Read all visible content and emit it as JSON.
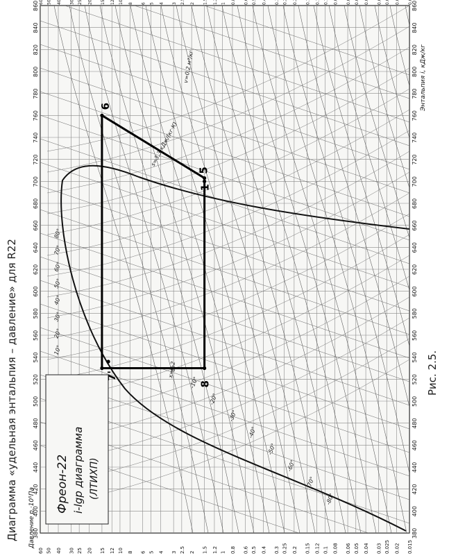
{
  "document": {
    "title": "Диаграмма «удельная энтальпия – давление» для R22",
    "caption": "Рис. 2.5."
  },
  "diagram": {
    "refrigerant": "Фреон-22",
    "diagram_name": "i-lgp диаграмма",
    "institute": "(ЛТИХП)",
    "pressure_axis_label": "Давление p,·10⁵Па",
    "enthalpy_axis_label": "Энтальпия i, кДж/кг",
    "enthalpy_ticks": [
      "380",
      "400",
      "420",
      "440",
      "460",
      "480",
      "500",
      "520",
      "540",
      "560",
      "580",
      "600",
      "620",
      "640",
      "660",
      "680",
      "700",
      "720",
      "740",
      "760",
      "780",
      "800",
      "820",
      "840",
      "860"
    ],
    "pressure_ticks": [
      "60",
      "50",
      "40",
      "30",
      "25",
      "20",
      "15",
      "12",
      "10",
      "8",
      "6",
      "5",
      "4",
      "3",
      "2.5",
      "2",
      "1.5",
      "1.2",
      "1",
      "0.8",
      "0.6",
      "0.5",
      "0.4",
      "0.3",
      "0.25",
      "0.2",
      "0.15",
      "0.12",
      "0.1",
      "0.08",
      "0.06",
      "0.05",
      "0.04",
      "0.03",
      "0.025",
      "0.02",
      "0.015"
    ],
    "temperature_labels": [
      "-80°",
      "-70°",
      "-60°",
      "-50°",
      "-40°",
      "-30°",
      "-20°",
      "-10°",
      "0°",
      "10°",
      "20°",
      "30°",
      "40°",
      "50°",
      "60°",
      "70°",
      "80°"
    ],
    "entropy_label": "s=3,3 кДж/(кг·К)",
    "volume_label": "v=0,2 м³/кг",
    "quality_label": "x=0,2",
    "cycle": {
      "points": [
        {
          "id": "6",
          "enthalpy": 760,
          "pressure": 15
        },
        {
          "id": "5",
          "enthalpy": 703,
          "pressure": 1.5
        },
        {
          "id": "1",
          "enthalpy": 700,
          "pressure": 1.5
        },
        {
          "id": "7",
          "enthalpy": 530,
          "pressure": 15
        },
        {
          "id": "7'",
          "enthalpy": 536,
          "pressure": 13
        },
        {
          "id": "8",
          "enthalpy": 530,
          "pressure": 1.5
        }
      ],
      "label_6": "6",
      "label_5": "5",
      "label_1": "1",
      "label_7": "7",
      "label_7p": "7'",
      "label_8": "8"
    }
  }
}
